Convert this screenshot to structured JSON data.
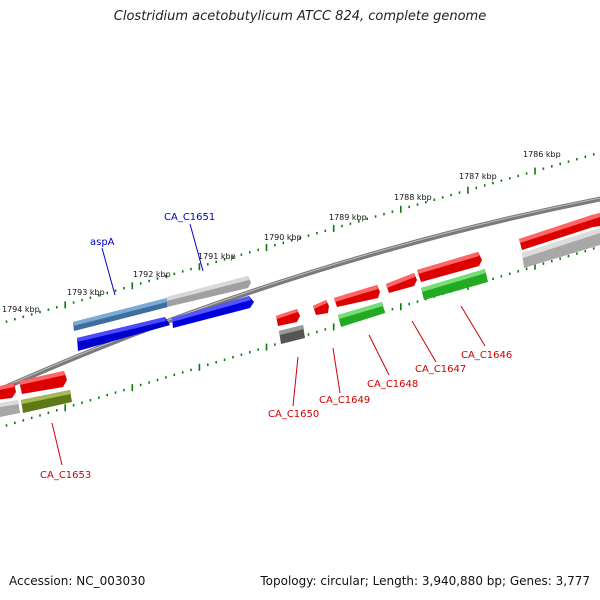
{
  "title": "Clostridium acetobutylicum ATCC 824, complete genome",
  "accession": "Accession: NC_003030",
  "summary": "Topology: circular; Length: 3,940,880 bp; Genes: 3,777",
  "ticks": [
    "1786 kbp",
    "1787 kbp",
    "1788 kbp",
    "1789 kbp",
    "1790 kbp",
    "1791 kbp",
    "1792 kbp",
    "1793 kbp",
    "1794 kbp"
  ],
  "genes": [
    "aspA",
    "CA_C1651",
    "CA_C1650",
    "CA_C1649",
    "CA_C1648",
    "CA_C1647",
    "CA_C1646",
    "CA_C1653"
  ],
  "colors": {
    "backbone": "#7a7a7a",
    "tick_marks": "#0b7a0b",
    "feature_red": "#ee1111",
    "feature_blue": "#0000ee",
    "feature_steelblue": "#4a7eb0",
    "feature_green": "#33bb33",
    "feature_olive": "#6e8a1e",
    "feature_grey": "#b4b4b4",
    "feature_darkgrey": "#606060",
    "label_red": "#d00000",
    "label_blue": "#0000c8"
  }
}
